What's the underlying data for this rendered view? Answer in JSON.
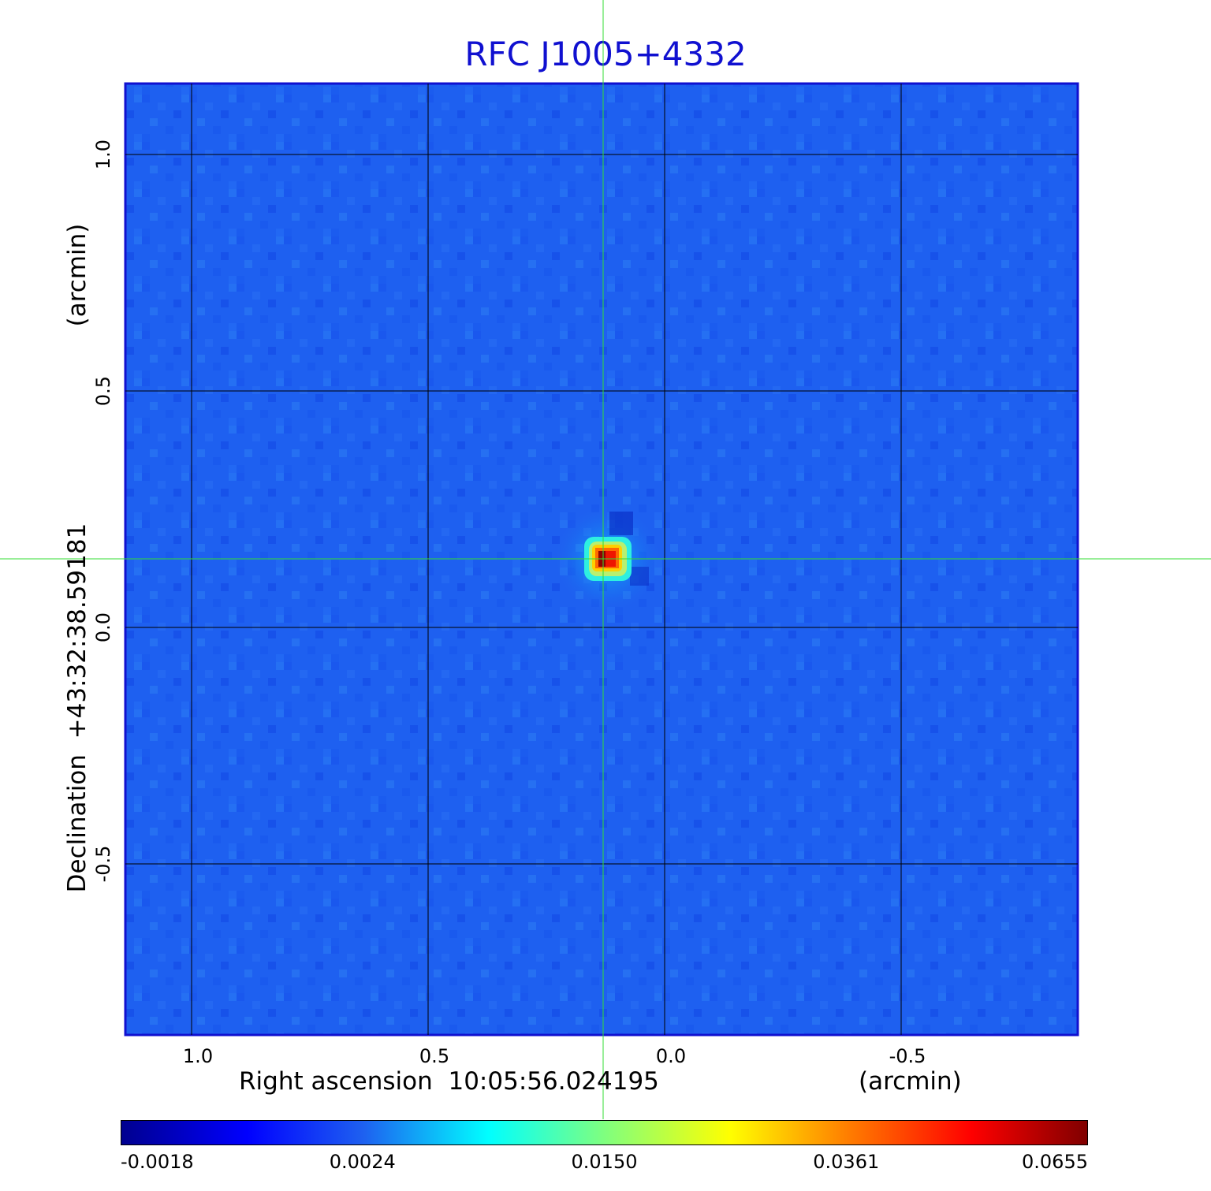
{
  "chart_data": {
    "type": "heatmap",
    "title": "RFC J1005+4332",
    "xlabel": "Right ascension  10:05:56.024195",
    "xunit": "(arcmin)",
    "ylabel": "Declination  +43:32:38.59181",
    "yunit": "(arcmin)",
    "xlim": [
      1.14,
      -0.87
    ],
    "ylim": [
      -0.86,
      1.15
    ],
    "x_ticks": [
      {
        "value": 1.0,
        "label": "1.0"
      },
      {
        "value": 0.5,
        "label": "0.5"
      },
      {
        "value": 0.0,
        "label": "0.0"
      },
      {
        "value": -0.5,
        "label": "-0.5"
      }
    ],
    "y_ticks": [
      {
        "value": 1.0,
        "label": "1.0"
      },
      {
        "value": 0.5,
        "label": "0.5"
      },
      {
        "value": 0.0,
        "label": "0.0"
      },
      {
        "value": -0.5,
        "label": "-0.5"
      }
    ],
    "grid": true,
    "crosshair": {
      "x": 0.13,
      "y": 0.145,
      "color": "#33dd33"
    },
    "peak": {
      "x": 0.12,
      "y": 0.145,
      "value": 0.0655
    },
    "background_color": "#1e60f0",
    "colorbar": {
      "min": -0.0018,
      "max": 0.0655,
      "tick_labels": [
        "-0.0018",
        "0.0024",
        "0.0150",
        "0.0361",
        "0.0655"
      ],
      "colors": [
        "#00008f",
        "#0000ff",
        "#1e60f0",
        "#00ffff",
        "#7fff7f",
        "#ffff00",
        "#ff8000",
        "#ff0000",
        "#800000"
      ]
    }
  }
}
